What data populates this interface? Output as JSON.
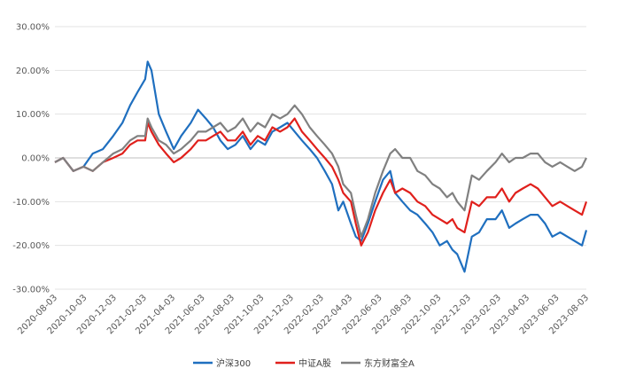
{
  "chart_data": {
    "type": "line",
    "title": "",
    "xlabel": "",
    "ylabel": "",
    "y_unit": "%",
    "ylim": [
      -30,
      30
    ],
    "y_ticks": [
      30,
      20,
      10,
      0,
      -10,
      -20,
      -30
    ],
    "y_tick_labels": [
      "30.00%",
      "20.00%",
      "10.00%",
      "0.00%",
      "-10.00%",
      "-20.00%",
      "-30.00%"
    ],
    "x_range": [
      "2020-08-03",
      "2023-08-03"
    ],
    "x_tick_labels": [
      "2020-08-03",
      "2020-10-03",
      "2020-12-03",
      "2021-02-03",
      "2021-04-03",
      "2021-06-03",
      "2021-08-03",
      "2021-10-03",
      "2021-12-03",
      "2022-02-03",
      "2022-04-03",
      "2022-06-03",
      "2022-08-03",
      "2022-10-03",
      "2022-12-03",
      "2023-02-03",
      "2023-04-03",
      "2023-06-03",
      "2023-08-03"
    ],
    "grid": "horizontal",
    "legend_position": "bottom",
    "series": [
      {
        "name": "沪深300",
        "color": "#1f6fbf",
        "x": [
          "2020-08-03",
          "2020-08-20",
          "2020-09-10",
          "2020-10-01",
          "2020-10-20",
          "2020-11-10",
          "2020-12-01",
          "2020-12-20",
          "2021-01-05",
          "2021-01-20",
          "2021-02-05",
          "2021-02-10",
          "2021-02-18",
          "2021-03-05",
          "2021-03-20",
          "2021-04-05",
          "2021-04-20",
          "2021-05-10",
          "2021-05-25",
          "2021-06-10",
          "2021-06-25",
          "2021-07-10",
          "2021-07-25",
          "2021-08-10",
          "2021-08-25",
          "2021-09-10",
          "2021-09-25",
          "2021-10-10",
          "2021-10-25",
          "2021-11-10",
          "2021-11-25",
          "2021-12-10",
          "2021-12-25",
          "2022-01-10",
          "2022-01-25",
          "2022-02-10",
          "2022-02-25",
          "2022-03-10",
          "2022-03-20",
          "2022-04-05",
          "2022-04-15",
          "2022-04-26",
          "2022-05-10",
          "2022-05-25",
          "2022-06-10",
          "2022-06-25",
          "2022-07-05",
          "2022-07-20",
          "2022-08-05",
          "2022-08-20",
          "2022-09-05",
          "2022-09-20",
          "2022-10-05",
          "2022-10-20",
          "2022-10-31",
          "2022-11-10",
          "2022-11-25",
          "2022-12-10",
          "2022-12-25",
          "2023-01-10",
          "2023-01-28",
          "2023-02-10",
          "2023-02-25",
          "2023-03-10",
          "2023-03-25",
          "2023-04-10",
          "2023-04-25",
          "2023-05-10",
          "2023-05-25",
          "2023-06-10",
          "2023-06-25",
          "2023-07-10",
          "2023-07-25",
          "2023-08-03"
        ],
        "values": [
          -1,
          0,
          -3,
          -2,
          1,
          2,
          5,
          8,
          12,
          15,
          18,
          22,
          20,
          10,
          6,
          2,
          5,
          8,
          11,
          9,
          7,
          4,
          2,
          3,
          5,
          2,
          4,
          3,
          6,
          7,
          8,
          6,
          4,
          2,
          0,
          -3,
          -6,
          -12,
          -10,
          -15,
          -18,
          -19,
          -15,
          -10,
          -5,
          -3,
          -8,
          -10,
          -12,
          -13,
          -15,
          -17,
          -20,
          -19,
          -21,
          -22,
          -26,
          -18,
          -17,
          -14,
          -14,
          -12,
          -16,
          -15,
          -14,
          -13,
          -13,
          -15,
          -18,
          -17,
          -18,
          -19,
          -20,
          -16.5
        ]
      },
      {
        "name": "中证A股",
        "color": "#e0201c",
        "x": [
          "2020-08-03",
          "2020-08-20",
          "2020-09-10",
          "2020-10-01",
          "2020-10-20",
          "2020-11-10",
          "2020-12-01",
          "2020-12-20",
          "2021-01-05",
          "2021-01-20",
          "2021-02-05",
          "2021-02-10",
          "2021-02-18",
          "2021-03-05",
          "2021-03-20",
          "2021-04-05",
          "2021-04-20",
          "2021-05-10",
          "2021-05-25",
          "2021-06-10",
          "2021-06-25",
          "2021-07-10",
          "2021-07-25",
          "2021-08-10",
          "2021-08-25",
          "2021-09-10",
          "2021-09-25",
          "2021-10-10",
          "2021-10-25",
          "2021-11-10",
          "2021-11-25",
          "2021-12-10",
          "2021-12-25",
          "2022-01-10",
          "2022-01-25",
          "2022-02-10",
          "2022-02-25",
          "2022-03-10",
          "2022-03-20",
          "2022-04-05",
          "2022-04-15",
          "2022-04-26",
          "2022-05-10",
          "2022-05-25",
          "2022-06-10",
          "2022-06-25",
          "2022-07-05",
          "2022-07-20",
          "2022-08-05",
          "2022-08-20",
          "2022-09-05",
          "2022-09-20",
          "2022-10-05",
          "2022-10-20",
          "2022-10-31",
          "2022-11-10",
          "2022-11-25",
          "2022-12-10",
          "2022-12-25",
          "2023-01-10",
          "2023-01-28",
          "2023-02-10",
          "2023-02-25",
          "2023-03-10",
          "2023-03-25",
          "2023-04-10",
          "2023-04-25",
          "2023-05-10",
          "2023-05-25",
          "2023-06-10",
          "2023-06-25",
          "2023-07-10",
          "2023-07-25",
          "2023-08-03"
        ],
        "values": [
          -1,
          0,
          -3,
          -2,
          -3,
          -1,
          0,
          1,
          3,
          4,
          4,
          8,
          6,
          3,
          1,
          -1,
          0,
          2,
          4,
          4,
          5,
          6,
          4,
          4,
          6,
          3,
          5,
          4,
          7,
          6,
          7,
          9,
          6,
          4,
          2,
          0,
          -2,
          -5,
          -8,
          -10,
          -15,
          -20,
          -17,
          -12,
          -8,
          -5,
          -8,
          -7,
          -8,
          -10,
          -11,
          -13,
          -14,
          -15,
          -14,
          -16,
          -17,
          -10,
          -11,
          -9,
          -9,
          -7,
          -10,
          -8,
          -7,
          -6,
          -7,
          -9,
          -11,
          -10,
          -11,
          -12,
          -13,
          -10
        ]
      },
      {
        "name": "东方财富全A",
        "color": "#808080",
        "x": [
          "2020-08-03",
          "2020-08-20",
          "2020-09-10",
          "2020-10-01",
          "2020-10-20",
          "2020-11-10",
          "2020-12-01",
          "2020-12-20",
          "2021-01-05",
          "2021-01-20",
          "2021-02-05",
          "2021-02-10",
          "2021-02-18",
          "2021-03-05",
          "2021-03-20",
          "2021-04-05",
          "2021-04-20",
          "2021-05-10",
          "2021-05-25",
          "2021-06-10",
          "2021-06-25",
          "2021-07-10",
          "2021-07-25",
          "2021-08-10",
          "2021-08-25",
          "2021-09-10",
          "2021-09-25",
          "2021-10-10",
          "2021-10-25",
          "2021-11-10",
          "2021-11-25",
          "2021-12-10",
          "2021-12-25",
          "2022-01-10",
          "2022-01-25",
          "2022-02-10",
          "2022-02-25",
          "2022-03-10",
          "2022-03-20",
          "2022-04-05",
          "2022-04-15",
          "2022-04-26",
          "2022-05-10",
          "2022-05-25",
          "2022-06-10",
          "2022-06-25",
          "2022-07-05",
          "2022-07-20",
          "2022-08-05",
          "2022-08-20",
          "2022-09-05",
          "2022-09-20",
          "2022-10-05",
          "2022-10-20",
          "2022-10-31",
          "2022-11-10",
          "2022-11-25",
          "2022-12-10",
          "2022-12-25",
          "2023-01-10",
          "2023-01-28",
          "2023-02-10",
          "2023-02-25",
          "2023-03-10",
          "2023-03-25",
          "2023-04-10",
          "2023-04-25",
          "2023-05-10",
          "2023-05-25",
          "2023-06-10",
          "2023-06-25",
          "2023-07-10",
          "2023-07-25",
          "2023-08-03"
        ],
        "values": [
          -1,
          0,
          -3,
          -2,
          -3,
          -1,
          1,
          2,
          4,
          5,
          5,
          9,
          7,
          4,
          3,
          1,
          2,
          4,
          6,
          6,
          7,
          8,
          6,
          7,
          9,
          6,
          8,
          7,
          10,
          9,
          10,
          12,
          10,
          7,
          5,
          3,
          1,
          -2,
          -6,
          -8,
          -13,
          -18,
          -14,
          -8,
          -3,
          1,
          2,
          0,
          0,
          -3,
          -4,
          -6,
          -7,
          -9,
          -8,
          -10,
          -12,
          -4,
          -5,
          -3,
          -1,
          1,
          -1,
          0,
          0,
          1,
          1,
          -1,
          -2,
          -1,
          -2,
          -3,
          -2,
          0
        ]
      }
    ]
  }
}
